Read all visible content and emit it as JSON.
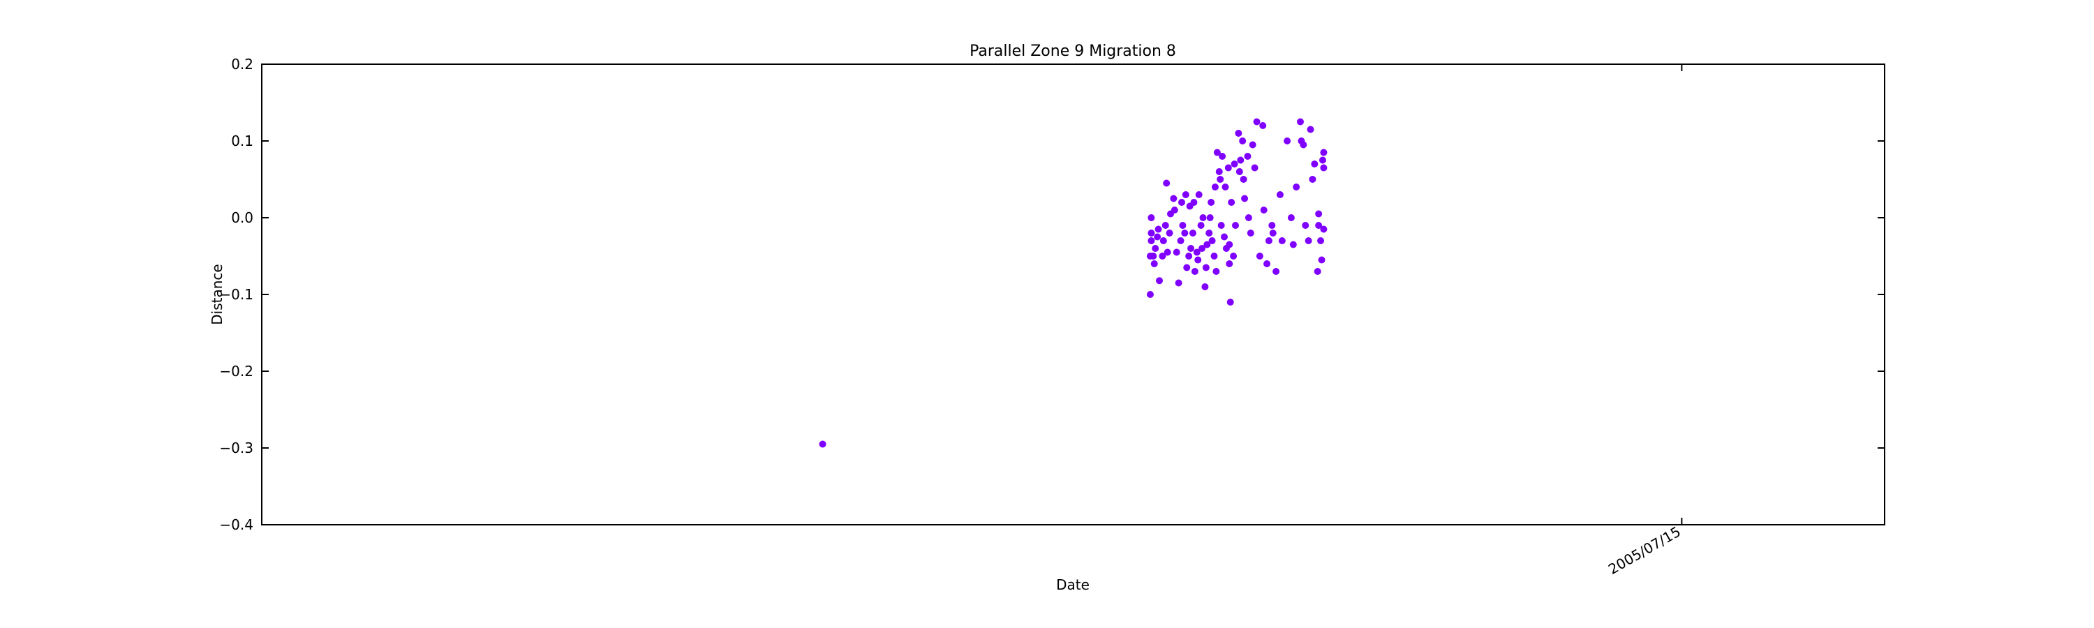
{
  "chart_data": {
    "type": "scatter",
    "title": "Parallel Zone 9 Migration 8",
    "x_label": "Date",
    "y_label": "Distance",
    "xlim": [
      "2001/09/14",
      "2006/01/31"
    ],
    "xticks": [
      "2005/07/15"
    ],
    "ylim": [
      -0.4,
      0.2
    ],
    "yticks": [
      {
        "value": -0.4,
        "label": "−0.4"
      },
      {
        "value": -0.3,
        "label": "−0.3"
      },
      {
        "value": -0.2,
        "label": "−0.2"
      },
      {
        "value": -0.1,
        "label": "−0.1"
      },
      {
        "value": 0.0,
        "label": "0.0"
      },
      {
        "value": 0.1,
        "label": "0.1"
      },
      {
        "value": 0.2,
        "label": "0.2"
      }
    ],
    "grid": false,
    "series": [
      {
        "color": "#7f00ff",
        "x": [
          "2003/03/21",
          "2004/02/07",
          "2004/02/07",
          "2004/02/08",
          "2004/02/08",
          "2004/02/08",
          "2004/02/10",
          "2004/02/11",
          "2004/02/12",
          "2004/02/14",
          "2004/02/15",
          "2004/02/16",
          "2004/02/19",
          "2004/02/20",
          "2004/02/22",
          "2004/02/23",
          "2004/02/24",
          "2004/02/26",
          "2004/02/27",
          "2004/03/01",
          "2004/03/02",
          "2004/03/04",
          "2004/03/06",
          "2004/03/08",
          "2004/03/09",
          "2004/03/10",
          "2004/03/12",
          "2004/03/13",
          "2004/03/14",
          "2004/03/16",
          "2004/03/17",
          "2004/03/18",
          "2004/03/20",
          "2004/03/21",
          "2004/03/22",
          "2004/03/24",
          "2004/03/25",
          "2004/03/26",
          "2004/03/28",
          "2004/03/29",
          "2004/03/30",
          "2004/04/01",
          "2004/04/02",
          "2004/04/03",
          "2004/04/05",
          "2004/04/06",
          "2004/04/07",
          "2004/04/08",
          "2004/04/10",
          "2004/04/11",
          "2004/04/12",
          "2004/04/13",
          "2004/04/15",
          "2004/04/16",
          "2004/04/17",
          "2004/04/18",
          "2004/04/20",
          "2004/04/21",
          "2004/04/22",
          "2004/04/24",
          "2004/04/25",
          "2004/04/25",
          "2004/04/26",
          "2004/04/27",
          "2004/04/29",
          "2004/04/30",
          "2004/05/01",
          "2004/05/04",
          "2004/05/05",
          "2004/05/06",
          "2004/05/08",
          "2004/05/09",
          "2004/05/10",
          "2004/05/13",
          "2004/05/14",
          "2004/05/16",
          "2004/05/18",
          "2004/05/20",
          "2004/05/22",
          "2004/05/25",
          "2004/05/28",
          "2004/05/29",
          "2004/06/01",
          "2004/06/03",
          "2004/06/06",
          "2004/06/07",
          "2004/06/10",
          "2004/06/14",
          "2004/06/16",
          "2004/06/21",
          "2004/06/25",
          "2004/06/27",
          "2004/06/30",
          "2004/07/04",
          "2004/07/05",
          "2004/07/07",
          "2004/07/09",
          "2004/07/12",
          "2004/07/14",
          "2004/07/16",
          "2004/07/18",
          "2004/07/21",
          "2004/07/22",
          "2004/07/22",
          "2004/07/24",
          "2004/07/25",
          "2004/07/26",
          "2004/07/27",
          "2004/07/27",
          "2004/07/27"
        ],
        "values": [
          -0.295,
          -0.1,
          -0.05,
          -0.03,
          -0.02,
          0.0,
          -0.05,
          -0.06,
          -0.04,
          -0.025,
          -0.015,
          -0.082,
          -0.05,
          -0.03,
          -0.01,
          0.045,
          -0.045,
          -0.02,
          0.005,
          0.025,
          0.01,
          -0.045,
          -0.085,
          -0.03,
          0.02,
          -0.01,
          -0.02,
          0.03,
          -0.065,
          -0.05,
          0.015,
          -0.04,
          -0.02,
          0.02,
          -0.07,
          -0.045,
          -0.055,
          0.03,
          -0.01,
          -0.04,
          0.0,
          -0.09,
          -0.065,
          -0.035,
          -0.02,
          0.0,
          0.02,
          -0.03,
          -0.05,
          0.04,
          -0.07,
          0.085,
          0.06,
          0.05,
          -0.01,
          0.08,
          -0.025,
          0.04,
          -0.04,
          0.065,
          -0.06,
          -0.035,
          -0.11,
          0.02,
          -0.05,
          0.07,
          -0.01,
          0.11,
          0.06,
          0.075,
          0.1,
          0.05,
          0.025,
          0.08,
          0.0,
          -0.02,
          0.095,
          0.065,
          0.125,
          -0.05,
          0.12,
          0.01,
          -0.06,
          -0.03,
          -0.01,
          -0.02,
          -0.07,
          0.03,
          -0.03,
          0.1,
          0.0,
          -0.035,
          0.04,
          0.125,
          0.1,
          0.095,
          -0.01,
          -0.03,
          0.115,
          0.05,
          0.07,
          -0.07,
          0.005,
          -0.01,
          -0.03,
          -0.055,
          0.075,
          0.085,
          0.065,
          -0.015
        ]
      }
    ]
  }
}
